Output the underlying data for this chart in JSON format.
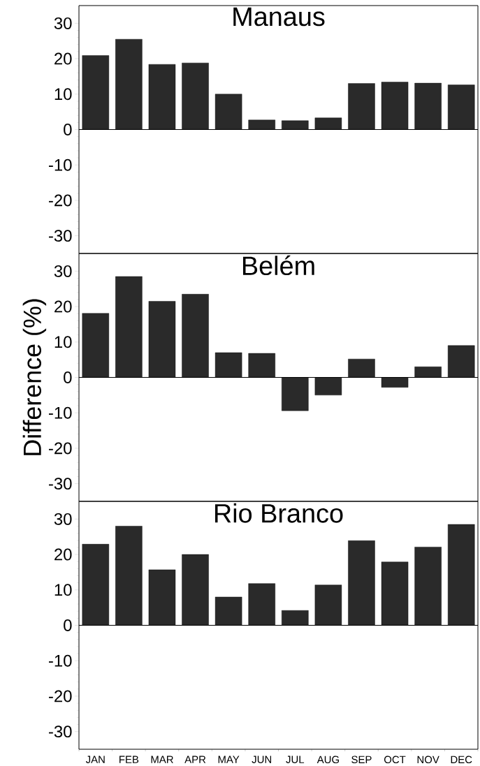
{
  "chart_data": [
    {
      "type": "bar",
      "title": "Manaus",
      "categories": [
        null,
        null,
        null,
        null,
        null,
        null,
        null,
        null,
        null,
        null,
        null,
        null
      ],
      "values": [
        20.9,
        25.5,
        18.4,
        18.8,
        10.0,
        2.7,
        2.5,
        3.3,
        13.0,
        13.4,
        13.1,
        12.6
      ],
      "color": "#2a2a2a",
      "ylim": [
        -35,
        35
      ],
      "yticks": [
        -30,
        -20,
        -10,
        0,
        10,
        20,
        30
      ]
    },
    {
      "type": "bar",
      "title": "Belém",
      "ylabel": "Difference (%)",
      "categories": [
        null,
        null,
        null,
        null,
        null,
        null,
        null,
        null,
        null,
        null,
        null,
        null
      ],
      "values": [
        18.1,
        28.5,
        21.5,
        23.5,
        7.0,
        6.8,
        -9.4,
        -5.0,
        5.2,
        -2.8,
        3.0,
        9.0
      ],
      "color": "#2a2a2a",
      "ylim": [
        -35,
        35
      ],
      "yticks": [
        -30,
        -20,
        -10,
        0,
        10,
        20,
        30
      ]
    },
    {
      "type": "bar",
      "title": "Rio Branco",
      "categories": [
        "JAN",
        "FEB",
        "MAR",
        "APR",
        "MAY",
        "JUN",
        "JUL",
        "AUG",
        "SEP",
        "OCT",
        "NOV",
        "DEC"
      ],
      "values": [
        22.9,
        28.0,
        15.7,
        20.0,
        8.0,
        11.8,
        4.2,
        11.4,
        23.9,
        17.9,
        22.1,
        28.5
      ],
      "color": "#2a2a2a",
      "ylim": [
        -35,
        35
      ],
      "yticks": [
        -30,
        -20,
        -10,
        0,
        10,
        20,
        30
      ]
    }
  ]
}
